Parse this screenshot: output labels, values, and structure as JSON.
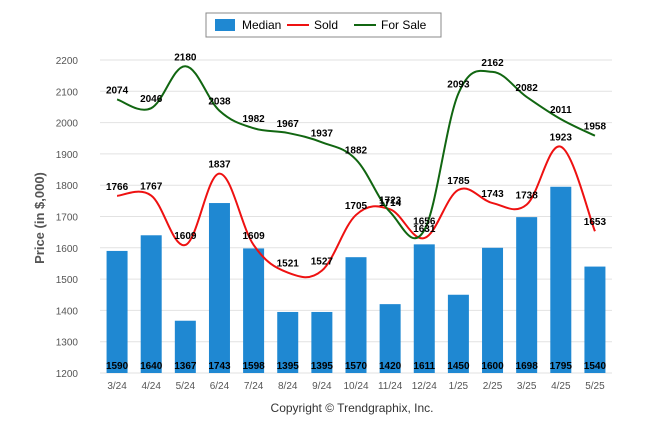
{
  "chart_data": {
    "type": "bar",
    "categories": [
      "3/24",
      "4/24",
      "5/24",
      "6/24",
      "7/24",
      "8/24",
      "9/24",
      "10/24",
      "11/24",
      "12/24",
      "1/25",
      "2/25",
      "3/25",
      "4/25",
      "5/25"
    ],
    "series": [
      {
        "name": "Median",
        "kind": "bar",
        "color": "#1f88d2",
        "values": [
          1590,
          1640,
          1367,
          1743,
          1598,
          1395,
          1395,
          1570,
          1420,
          1611,
          1450,
          1600,
          1698,
          1795,
          1540
        ]
      },
      {
        "name": "Sold",
        "kind": "line",
        "color": "#ee1111",
        "values": [
          1766,
          1767,
          1609,
          1837,
          1609,
          1521,
          1527,
          1705,
          1723,
          1631,
          1785,
          1743,
          1738,
          1923,
          1653
        ]
      },
      {
        "name": "For Sale",
        "kind": "line",
        "color": "#116611",
        "values": [
          2074,
          2046,
          2180,
          2038,
          1982,
          1967,
          1937,
          1882,
          1714,
          1656,
          2093,
          2162,
          2082,
          2011,
          1958
        ]
      }
    ],
    "ylabel": "Price (in $,000)",
    "xlabel": "",
    "ylim": [
      1200,
      2200
    ],
    "yticks": [
      1200,
      1300,
      1400,
      1500,
      1600,
      1700,
      1800,
      1900,
      2000,
      2100,
      2200
    ],
    "grid": true,
    "legend": "top-center",
    "credit": "Copyright © Trendgraphix, Inc."
  }
}
